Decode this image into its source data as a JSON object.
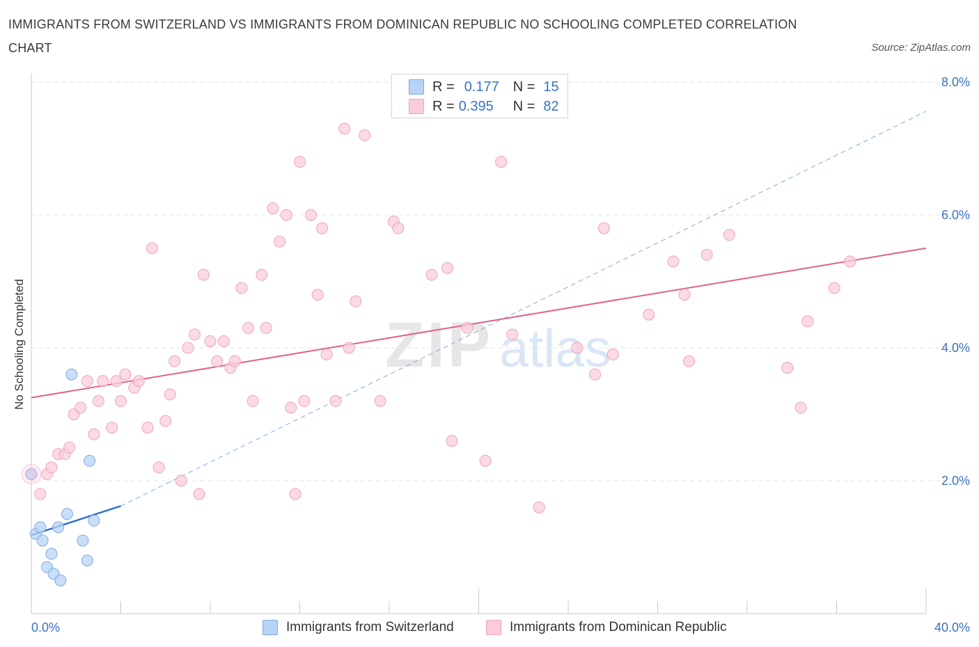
{
  "title": "IMMIGRANTS FROM SWITZERLAND VS IMMIGRANTS FROM DOMINICAN REPUBLIC NO SCHOOLING COMPLETED CORRELATION CHART",
  "source": "Source: ZipAtlas.com",
  "watermark": {
    "zip": "ZIP",
    "atlas": "atlas"
  },
  "legend": {
    "r_label": "R =",
    "n_label": "N =",
    "series1": {
      "r": "0.177",
      "n": "15"
    },
    "series2": {
      "r": "0.395",
      "n": "82"
    }
  },
  "colors": {
    "series1_fill": "#b8d3f5",
    "series1_stroke": "#7fa9e0",
    "series1_line": "#2f6fd0",
    "series2_fill": "#f9cddb",
    "series2_stroke": "#eea3bb",
    "series2_line": "#e0608a",
    "axis_text": "#3a72c4",
    "grid": "#e3e3e3"
  },
  "chart_data": {
    "type": "scatter",
    "xlabel": "",
    "ylabel": "No Schooling Completed",
    "xlim": [
      0,
      40
    ],
    "ylim": [
      0,
      8
    ],
    "x_tick_labels": [
      "0.0%",
      "40.0%"
    ],
    "y_ticks": [
      2,
      4,
      6,
      8
    ],
    "y_tick_labels": [
      "2.0%",
      "4.0%",
      "6.0%",
      "8.0%"
    ],
    "grid": true,
    "series": [
      {
        "name": "Immigrants from Switzerland",
        "points": [
          [
            0.0,
            2.1
          ],
          [
            0.2,
            1.2
          ],
          [
            0.4,
            1.3
          ],
          [
            0.5,
            1.1
          ],
          [
            0.7,
            0.7
          ],
          [
            0.9,
            0.9
          ],
          [
            1.0,
            0.6
          ],
          [
            1.2,
            1.3
          ],
          [
            1.3,
            0.5
          ],
          [
            1.6,
            1.5
          ],
          [
            1.8,
            3.6
          ],
          [
            2.3,
            1.1
          ],
          [
            2.5,
            0.8
          ],
          [
            2.6,
            2.3
          ],
          [
            2.8,
            1.4
          ]
        ],
        "trend": {
          "x": [
            0,
            4
          ],
          "y": [
            1.18,
            1.62
          ]
        },
        "trend_extended": {
          "x": [
            4,
            40
          ],
          "y": [
            1.62,
            7.56
          ]
        }
      },
      {
        "name": "Immigrants from Dominican Republic",
        "points": [
          [
            0.0,
            2.1
          ],
          [
            0.4,
            1.8
          ],
          [
            0.7,
            2.1
          ],
          [
            0.9,
            2.2
          ],
          [
            1.2,
            2.4
          ],
          [
            1.5,
            2.4
          ],
          [
            1.7,
            2.5
          ],
          [
            1.9,
            3.0
          ],
          [
            2.2,
            3.1
          ],
          [
            2.5,
            3.5
          ],
          [
            2.8,
            2.7
          ],
          [
            3.0,
            3.2
          ],
          [
            3.2,
            3.5
          ],
          [
            3.6,
            2.8
          ],
          [
            3.8,
            3.5
          ],
          [
            4.0,
            3.2
          ],
          [
            4.2,
            3.6
          ],
          [
            4.6,
            3.4
          ],
          [
            4.8,
            3.5
          ],
          [
            5.2,
            2.8
          ],
          [
            5.4,
            5.5
          ],
          [
            5.7,
            2.2
          ],
          [
            6.0,
            2.9
          ],
          [
            6.2,
            3.3
          ],
          [
            6.4,
            3.8
          ],
          [
            6.7,
            2.0
          ],
          [
            7.0,
            4.0
          ],
          [
            7.3,
            4.2
          ],
          [
            7.5,
            1.8
          ],
          [
            7.7,
            5.1
          ],
          [
            8.0,
            4.1
          ],
          [
            8.3,
            3.8
          ],
          [
            8.6,
            4.1
          ],
          [
            8.9,
            3.7
          ],
          [
            9.1,
            3.8
          ],
          [
            9.4,
            4.9
          ],
          [
            9.7,
            4.3
          ],
          [
            9.9,
            3.2
          ],
          [
            10.3,
            5.1
          ],
          [
            10.5,
            4.3
          ],
          [
            10.8,
            6.1
          ],
          [
            11.1,
            5.6
          ],
          [
            11.4,
            6.0
          ],
          [
            11.6,
            3.1
          ],
          [
            11.8,
            1.8
          ],
          [
            12.0,
            6.8
          ],
          [
            12.2,
            3.2
          ],
          [
            12.5,
            6.0
          ],
          [
            12.8,
            4.8
          ],
          [
            13.0,
            5.8
          ],
          [
            13.2,
            3.9
          ],
          [
            13.6,
            3.2
          ],
          [
            14.0,
            7.3
          ],
          [
            14.2,
            4.0
          ],
          [
            14.5,
            4.7
          ],
          [
            14.9,
            7.2
          ],
          [
            15.6,
            3.2
          ],
          [
            16.2,
            5.9
          ],
          [
            16.4,
            5.8
          ],
          [
            17.9,
            5.1
          ],
          [
            18.6,
            5.2
          ],
          [
            18.8,
            2.6
          ],
          [
            19.5,
            4.3
          ],
          [
            20.3,
            2.3
          ],
          [
            21.0,
            6.8
          ],
          [
            21.5,
            4.2
          ],
          [
            22.7,
            1.6
          ],
          [
            24.4,
            4.0
          ],
          [
            25.2,
            3.6
          ],
          [
            25.6,
            5.8
          ],
          [
            26.0,
            3.9
          ],
          [
            27.6,
            4.5
          ],
          [
            28.7,
            5.3
          ],
          [
            29.2,
            4.8
          ],
          [
            29.4,
            3.8
          ],
          [
            30.2,
            5.4
          ],
          [
            31.2,
            5.7
          ],
          [
            33.8,
            3.7
          ],
          [
            34.4,
            3.1
          ],
          [
            34.7,
            4.4
          ],
          [
            35.9,
            4.9
          ],
          [
            36.6,
            5.3
          ]
        ],
        "trend": {
          "x": [
            0,
            40
          ],
          "y": [
            3.25,
            5.5
          ]
        }
      }
    ]
  }
}
